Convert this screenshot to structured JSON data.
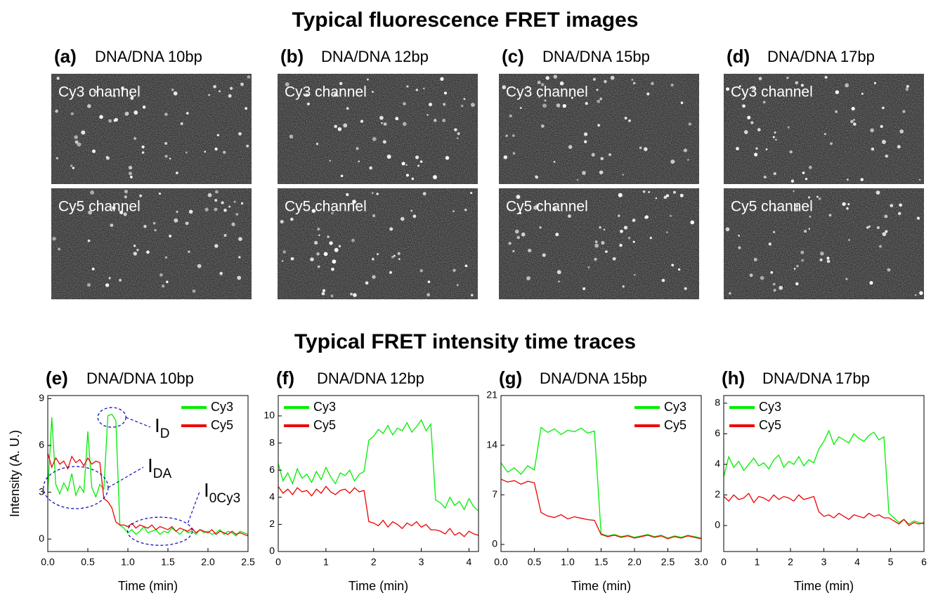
{
  "image_title": "Typical fluorescence FRET images",
  "image_panels": [
    {
      "label": "(a)",
      "title": "DNA/DNA 10bp",
      "channels": [
        "Cy3 channel",
        "Cy5 channel"
      ]
    },
    {
      "label": "(b)",
      "title": "DNA/DNA 12bp",
      "channels": [
        "Cy3 channel",
        "Cy5 channel"
      ]
    },
    {
      "label": "(c)",
      "title": "DNA/DNA 15bp",
      "channels": [
        "Cy3 channel",
        "Cy5 channel"
      ]
    },
    {
      "label": "(d)",
      "title": "DNA/DNA 17bp",
      "channels": [
        "Cy3 channel",
        "Cy5 channel"
      ]
    }
  ],
  "trace_title": "Typical FRET intensity time traces",
  "chart_data": [
    {
      "type": "line",
      "label": "(e)",
      "title": "DNA/DNA 10bp",
      "x_label": "Time (min)",
      "y_label": "Intensity (A. U.)",
      "legend": "upper right",
      "x": [
        0,
        0.05,
        0.1,
        0.15,
        0.2,
        0.25,
        0.3,
        0.35,
        0.4,
        0.45,
        0.5,
        0.55,
        0.6,
        0.65,
        0.7,
        0.75,
        0.8,
        0.85,
        0.9,
        0.95,
        1,
        1.05,
        1.1,
        1.15,
        1.2,
        1.25,
        1.3,
        1.35,
        1.4,
        1.45,
        1.5,
        1.55,
        1.6,
        1.65,
        1.7,
        1.75,
        1.8,
        1.85,
        1.9,
        1.95,
        2,
        2.05,
        2.1,
        2.15,
        2.2,
        2.25,
        2.3,
        2.35,
        2.4,
        2.45,
        2.5
      ],
      "series": [
        {
          "name": "Cy3",
          "color": "#00ee00",
          "values": [
            3.0,
            7.8,
            3.5,
            2.9,
            3.6,
            3.1,
            4.2,
            2.8,
            3.4,
            3.0,
            6.9,
            3.3,
            2.7,
            3.5,
            3.2,
            7.9,
            8.0,
            7.6,
            0.9,
            0.7,
            0.4,
            0.6,
            0.3,
            0.5,
            0.8,
            0.4,
            0.5,
            0.6,
            0.3,
            0.5,
            0.4,
            0.7,
            0.5,
            0.3,
            0.6,
            0.4,
            0.5,
            0.3,
            0.6,
            0.4,
            0.5,
            0.3,
            0.4,
            0.6,
            0.3,
            0.5,
            0.4,
            0.2,
            0.5,
            0.4,
            0.3
          ]
        },
        {
          "name": "Cy5",
          "color": "#ee0000",
          "values": [
            5.5,
            4.6,
            5.2,
            4.8,
            5.0,
            4.5,
            5.3,
            4.9,
            5.1,
            4.7,
            5.2,
            4.8,
            5.0,
            4.9,
            2.6,
            2.4,
            2.0,
            1.1,
            0.9,
            0.9,
            0.8,
            1.0,
            0.7,
            0.9,
            0.8,
            0.7,
            0.9,
            0.6,
            0.8,
            0.7,
            0.6,
            0.8,
            0.5,
            0.7,
            0.6,
            0.5,
            0.7,
            0.4,
            0.6,
            0.5,
            0.4,
            0.6,
            0.3,
            0.5,
            0.4,
            0.3,
            0.5,
            0.3,
            0.4,
            0.3,
            0.2
          ]
        }
      ],
      "xlim": [
        0,
        2.5
      ],
      "xticks": [
        {
          "value": 0,
          "label": "0.0"
        },
        0.5,
        {
          "value": 1,
          "label": "1.0"
        },
        1.5,
        {
          "value": 2,
          "label": "2.0"
        },
        2.5
      ],
      "ylim": [
        -0.8,
        9.2
      ],
      "yticks": [
        0,
        3,
        6,
        9
      ],
      "annotations": [
        {
          "text": "I",
          "sub": "D"
        },
        {
          "text": "I",
          "sub": "DA"
        },
        {
          "text": "I",
          "sub": "0Cy3"
        }
      ]
    },
    {
      "type": "line",
      "label": "(f)",
      "title": "DNA/DNA 12bp",
      "x_label": "Time (min)",
      "legend": "upper left",
      "x": [
        0,
        0.1,
        0.2,
        0.3,
        0.4,
        0.5,
        0.6,
        0.7,
        0.8,
        0.9,
        1,
        1.1,
        1.2,
        1.3,
        1.4,
        1.5,
        1.6,
        1.7,
        1.8,
        1.9,
        2,
        2.1,
        2.2,
        2.3,
        2.4,
        2.5,
        2.6,
        2.7,
        2.8,
        2.9,
        3,
        3.1,
        3.2,
        3.3,
        3.4,
        3.5,
        3.6,
        3.7,
        3.8,
        3.9,
        4,
        4.1,
        4.2
      ],
      "series": [
        {
          "name": "Cy3",
          "color": "#00ee00",
          "values": [
            6.5,
            5.2,
            5.8,
            5.0,
            6.1,
            5.4,
            5.7,
            5.1,
            5.9,
            5.3,
            6.2,
            5.5,
            5.0,
            5.8,
            5.6,
            6.0,
            5.2,
            5.7,
            5.9,
            8.2,
            8.5,
            9.0,
            8.7,
            9.3,
            8.6,
            9.1,
            8.9,
            9.5,
            8.8,
            9.2,
            9.7,
            8.9,
            9.4,
            3.8,
            3.6,
            3.2,
            4.0,
            3.4,
            3.7,
            3.1,
            3.9,
            3.3,
            3.0
          ]
        },
        {
          "name": "Cy5",
          "color": "#ee0000",
          "values": [
            4.8,
            4.3,
            4.6,
            4.2,
            4.7,
            4.4,
            4.5,
            4.1,
            4.6,
            4.3,
            4.8,
            4.4,
            4.2,
            4.5,
            4.6,
            4.3,
            4.7,
            4.4,
            4.5,
            2.2,
            2.1,
            1.9,
            2.3,
            1.8,
            2.2,
            2.0,
            1.7,
            2.1,
            1.9,
            2.2,
            1.8,
            2.0,
            1.6,
            1.6,
            1.5,
            1.3,
            1.7,
            1.2,
            1.4,
            1.1,
            1.5,
            1.3,
            1.2
          ]
        }
      ],
      "xlim": [
        0,
        4.2
      ],
      "xticks": [
        0,
        1,
        2,
        3,
        4
      ],
      "ylim": [
        0,
        11.5
      ],
      "yticks": [
        0,
        2,
        4,
        6,
        8,
        10
      ]
    },
    {
      "type": "line",
      "label": "(g)",
      "title": "DNA/DNA 15bp",
      "x_label": "Time (min)",
      "legend": "upper right",
      "x": [
        0,
        0.1,
        0.2,
        0.3,
        0.4,
        0.5,
        0.6,
        0.7,
        0.8,
        0.9,
        1,
        1.1,
        1.2,
        1.3,
        1.4,
        1.5,
        1.6,
        1.7,
        1.8,
        1.9,
        2,
        2.1,
        2.2,
        2.3,
        2.4,
        2.5,
        2.6,
        2.7,
        2.8,
        2.9,
        3
      ],
      "series": [
        {
          "name": "Cy3",
          "color": "#00ee00",
          "values": [
            11.5,
            10.2,
            10.8,
            9.9,
            11.1,
            10.5,
            16.5,
            15.8,
            16.3,
            15.5,
            16.1,
            15.9,
            16.4,
            15.7,
            16.0,
            1.5,
            1.2,
            1.4,
            1.1,
            1.3,
            1.0,
            1.2,
            1.4,
            1.1,
            1.3,
            0.9,
            1.2,
            1.0,
            1.3,
            1.1,
            0.9
          ]
        },
        {
          "name": "Cy5",
          "color": "#ee0000",
          "values": [
            9.2,
            8.8,
            9.0,
            8.5,
            8.9,
            8.7,
            4.5,
            4.0,
            3.8,
            4.2,
            3.6,
            3.9,
            3.7,
            3.5,
            3.4,
            1.4,
            1.1,
            1.3,
            1.0,
            1.2,
            0.9,
            1.1,
            1.3,
            1.0,
            1.2,
            0.8,
            1.1,
            0.9,
            1.2,
            1.0,
            0.8
          ]
        }
      ],
      "xlim": [
        0,
        3
      ],
      "xticks": [
        {
          "value": 0,
          "label": "0.0"
        },
        0.5,
        {
          "value": 1,
          "label": "1.0"
        },
        1.5,
        {
          "value": 2,
          "label": "2.0"
        },
        2.5,
        {
          "value": 3,
          "label": "3.0"
        }
      ],
      "ylim": [
        -1,
        21
      ],
      "yticks": [
        0,
        7,
        14,
        21
      ]
    },
    {
      "type": "line",
      "label": "(h)",
      "title": "DNA/DNA 17bp",
      "x_label": "Time (min)",
      "legend": "upper left",
      "x": [
        0,
        0.15,
        0.3,
        0.45,
        0.6,
        0.75,
        0.9,
        1.05,
        1.2,
        1.35,
        1.5,
        1.65,
        1.8,
        1.95,
        2.1,
        2.25,
        2.4,
        2.55,
        2.7,
        2.85,
        3,
        3.15,
        3.3,
        3.45,
        3.6,
        3.75,
        3.9,
        4.05,
        4.2,
        4.35,
        4.5,
        4.65,
        4.8,
        4.95,
        5.1,
        5.25,
        5.4,
        5.55,
        5.7,
        5.85,
        6
      ],
      "series": [
        {
          "name": "Cy3",
          "color": "#00ee00",
          "values": [
            3.2,
            4.5,
            3.8,
            4.2,
            3.6,
            4.0,
            4.4,
            3.9,
            4.1,
            3.7,
            4.3,
            4.6,
            3.8,
            4.2,
            4.0,
            4.5,
            3.9,
            4.3,
            4.1,
            5.0,
            5.5,
            6.2,
            5.3,
            5.8,
            5.6,
            5.4,
            6.0,
            5.7,
            5.5,
            5.9,
            6.1,
            5.6,
            5.8,
            0.8,
            0.5,
            0.2,
            0.4,
            0.1,
            0.3,
            0.2,
            0.1
          ]
        },
        {
          "name": "Cy5",
          "color": "#ee0000",
          "values": [
            1.9,
            1.6,
            2.0,
            1.7,
            1.8,
            2.1,
            1.5,
            1.9,
            1.8,
            1.6,
            2.0,
            1.7,
            1.9,
            1.8,
            1.6,
            2.0,
            1.7,
            1.8,
            1.9,
            0.9,
            0.6,
            0.7,
            0.5,
            0.8,
            0.6,
            0.4,
            0.7,
            0.6,
            0.5,
            0.8,
            0.6,
            0.7,
            0.5,
            0.5,
            0.3,
            0.1,
            0.4,
            0.0,
            0.2,
            0.1,
            0.2
          ]
        }
      ],
      "xlim": [
        0,
        6
      ],
      "xticks": [
        0,
        1,
        2,
        3,
        4,
        5,
        6
      ],
      "ylim": [
        -1.7,
        8.5
      ],
      "yticks": [
        0,
        2,
        4,
        6,
        8
      ]
    }
  ]
}
